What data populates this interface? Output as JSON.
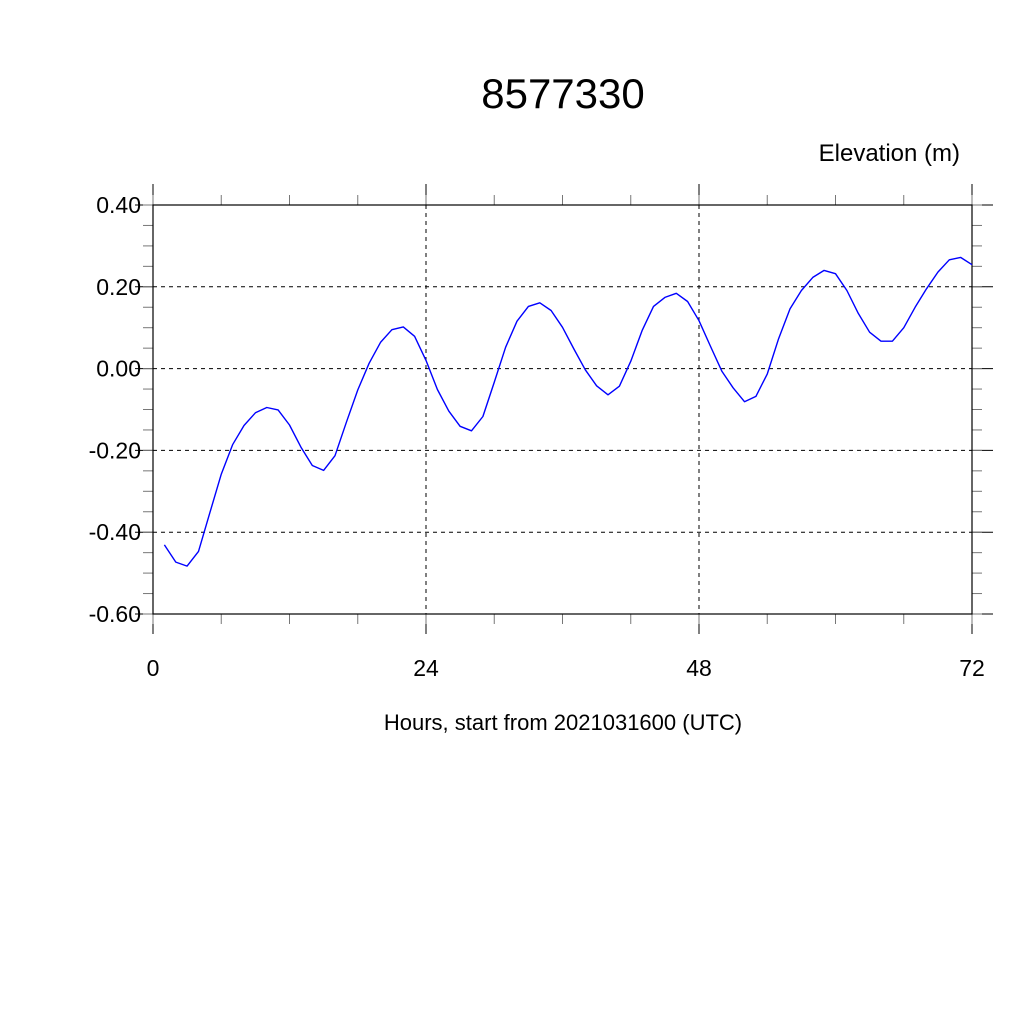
{
  "chart_data": {
    "type": "line",
    "title": "8577330",
    "ylabel": "Elevation (m)",
    "xlabel": "Hours, start from 2021031600 (UTC)",
    "xlim": [
      0,
      72
    ],
    "ylim": [
      -0.6,
      0.4
    ],
    "x_ticks": [
      0,
      24,
      48,
      72
    ],
    "x_tick_labels": [
      "0",
      "24",
      "48",
      "72"
    ],
    "y_ticks": [
      -0.6,
      -0.4,
      -0.2,
      0.0,
      0.2,
      0.4
    ],
    "y_tick_labels": [
      "-0.60",
      "-0.40",
      "-0.20",
      "0.00",
      "0.20",
      "0.40"
    ],
    "grid": true,
    "grid_style": "dashed",
    "series": [
      {
        "color": "#0000ff",
        "x": [
          1,
          2,
          3,
          4,
          5,
          6,
          7,
          8,
          9,
          10,
          11,
          12,
          13,
          14,
          15,
          16,
          17,
          18,
          19,
          20,
          21,
          22,
          23,
          24,
          25,
          26,
          27,
          28,
          29,
          30,
          31,
          32,
          33,
          34,
          35,
          36,
          37,
          38,
          39,
          40,
          41,
          42,
          43,
          44,
          45,
          46,
          47,
          48,
          49,
          50,
          51,
          52,
          53,
          54,
          55,
          56,
          57,
          58,
          59,
          60,
          61,
          62,
          63,
          64,
          65,
          66,
          67,
          68,
          69,
          70,
          71,
          72
        ],
        "y": [
          -0.431,
          -0.473,
          -0.483,
          -0.447,
          -0.352,
          -0.258,
          -0.186,
          -0.139,
          -0.108,
          -0.095,
          -0.101,
          -0.138,
          -0.192,
          -0.237,
          -0.249,
          -0.213,
          -0.131,
          -0.052,
          0.013,
          0.064,
          0.095,
          0.102,
          0.079,
          0.02,
          -0.051,
          -0.104,
          -0.141,
          -0.152,
          -0.117,
          -0.033,
          0.052,
          0.116,
          0.152,
          0.161,
          0.142,
          0.101,
          0.048,
          -0.003,
          -0.042,
          -0.064,
          -0.043,
          0.018,
          0.093,
          0.152,
          0.174,
          0.184,
          0.164,
          0.117,
          0.055,
          -0.006,
          -0.047,
          -0.081,
          -0.068,
          -0.013,
          0.073,
          0.146,
          0.191,
          0.223,
          0.24,
          0.232,
          0.191,
          0.135,
          0.089,
          0.067,
          0.067,
          0.1,
          0.15,
          0.195,
          0.236,
          0.266,
          0.272,
          0.254
        ]
      }
    ]
  }
}
